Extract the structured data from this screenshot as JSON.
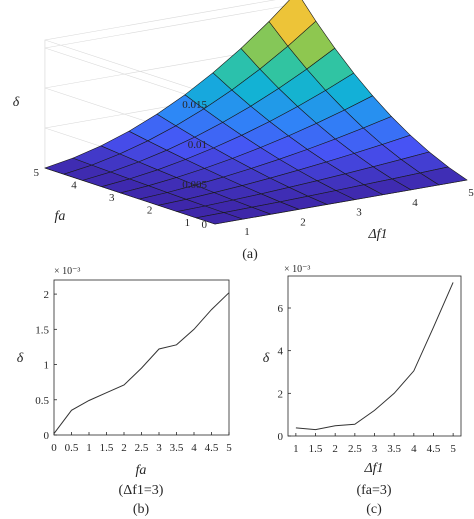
{
  "colors": {
    "axis": "#262626",
    "line": "#333333",
    "edge": "#1a1a1a",
    "grid": "#d9d9d9"
  },
  "chart_data": [
    {
      "type": "surface",
      "panel": "(a)",
      "xlabel": "Δf1",
      "ylabel": "fa",
      "zlabel": "δ",
      "x": [
        0.5,
        1,
        1.5,
        2,
        2.5,
        3,
        3.5,
        4,
        4.5,
        5
      ],
      "y": [
        0.5,
        1,
        1.5,
        2,
        2.5,
        3,
        3.5,
        4,
        4.5,
        5
      ],
      "x_ticks": [
        "1",
        "2",
        "3",
        "4",
        "5"
      ],
      "y_ticks": [
        "1",
        "2",
        "3",
        "4",
        "5"
      ],
      "z_ticks": [
        "0",
        "0.005",
        "0.01",
        "0.015"
      ],
      "xlim": [
        0.5,
        5
      ],
      "ylim": [
        0.5,
        5
      ],
      "zlim": [
        0,
        0.016
      ],
      "z_max": 0.0165,
      "colormap": "parula",
      "grid": true
    },
    {
      "type": "line",
      "panel": "(b)",
      "subtitle": "(Δf1=3)",
      "xlabel": "fa",
      "ylabel": "δ",
      "y_exponent": "× 10⁻³",
      "x": [
        0,
        0.5,
        1,
        1.5,
        2,
        2.5,
        3,
        3.5,
        4,
        4.5,
        5
      ],
      "x_ticks": [
        "0",
        "0.5",
        "1",
        "1.5",
        "2",
        "2.5",
        "3",
        "3.5",
        "4",
        "4.5",
        "5"
      ],
      "y_ticks": [
        "0",
        "0.5",
        "1",
        "1.5",
        "2"
      ],
      "values": [
        0.02,
        0.35,
        0.49,
        0.6,
        0.71,
        0.95,
        1.22,
        1.28,
        1.5,
        1.78,
        2.02
      ],
      "xlim": [
        0,
        5
      ],
      "ylim": [
        0,
        2.2
      ]
    },
    {
      "type": "line",
      "panel": "(c)",
      "subtitle": "(fa=3)",
      "xlabel": "Δf1",
      "ylabel": "δ",
      "y_exponent": "× 10⁻³",
      "x": [
        1,
        1.5,
        2,
        2.5,
        3,
        3.5,
        4,
        4.5,
        5
      ],
      "x_ticks": [
        "1",
        "1.5",
        "2",
        "2.5",
        "3",
        "3.5",
        "4",
        "4.5",
        "5"
      ],
      "y_ticks": [
        "0",
        "2",
        "4",
        "6"
      ],
      "values": [
        0.38,
        0.3,
        0.48,
        0.55,
        1.2,
        2.0,
        3.05,
        5.1,
        7.2
      ],
      "xlim": [
        0.8,
        5.2
      ],
      "ylim": [
        0,
        7.5
      ]
    }
  ]
}
